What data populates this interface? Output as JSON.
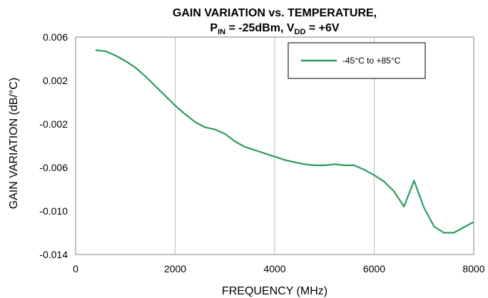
{
  "chart_data": {
    "type": "line",
    "title_line1": "GAIN VARIATION vs. TEMPERATURE,",
    "title_line2": {
      "p": "P",
      "p_sub": "IN",
      "mid": " = -25dBm, V",
      "v_sub": "DD",
      "end": " = +6V"
    },
    "xlabel": "FREQUENCY (MHz)",
    "ylabel": "GAIN VARIATION (dB/°C)",
    "xlim": [
      0,
      8000
    ],
    "ylim": [
      -0.014,
      0.006
    ],
    "x_ticks": [
      "0",
      "2000",
      "4000",
      "6000",
      "8000"
    ],
    "y_ticks": [
      "0.006",
      "0.002",
      "-0.002",
      "-0.006",
      "-0.010",
      "-0.014"
    ],
    "grid": "vertical",
    "legend_position": "top-right",
    "series": [
      {
        "name": "-45°C to +85°C",
        "color": "#2e9b5e",
        "x": [
          400,
          600,
          800,
          1000,
          1200,
          1400,
          1600,
          1800,
          2000,
          2200,
          2400,
          2600,
          2800,
          3000,
          3200,
          3400,
          3600,
          3800,
          4000,
          4200,
          4400,
          4600,
          4800,
          5000,
          5200,
          5400,
          5600,
          5800,
          6000,
          6200,
          6400,
          6600,
          6800,
          7000,
          7200,
          7400,
          7600,
          7800,
          8000
        ],
        "y": [
          0.0048,
          0.0047,
          0.0043,
          0.0038,
          0.0032,
          0.0024,
          0.0015,
          0.0006,
          -0.0003,
          -0.0011,
          -0.0018,
          -0.0023,
          -0.0025,
          -0.0029,
          -0.0036,
          -0.0041,
          -0.0044,
          -0.0047,
          -0.005,
          -0.0053,
          -0.0055,
          -0.0057,
          -0.0058,
          -0.0058,
          -0.0057,
          -0.0058,
          -0.0058,
          -0.0062,
          -0.0067,
          -0.0073,
          -0.0082,
          -0.0096,
          -0.0072,
          -0.0097,
          -0.0114,
          -0.012,
          -0.012,
          -0.0115,
          -0.011
        ]
      }
    ]
  }
}
